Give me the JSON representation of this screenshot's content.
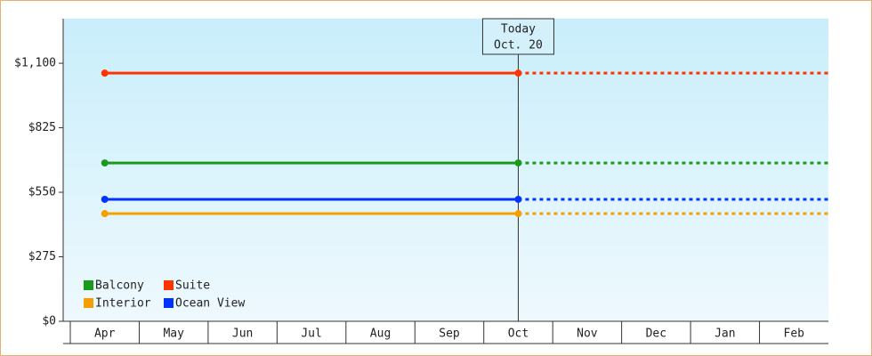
{
  "chart_data": {
    "type": "line",
    "categories": [
      "Apr",
      "May",
      "Jun",
      "Jul",
      "Aug",
      "Sep",
      "Oct",
      "Nov",
      "Dec",
      "Jan",
      "Feb"
    ],
    "series": [
      {
        "name": "Balcony",
        "color": "#1a9a1a",
        "values": [
          675,
          675,
          675,
          675,
          675,
          675,
          675,
          null,
          null,
          null,
          null
        ]
      },
      {
        "name": "Suite",
        "color": "#ff3300",
        "values": [
          1058,
          1058,
          1058,
          1058,
          1058,
          1058,
          1058,
          null,
          null,
          null,
          null
        ]
      },
      {
        "name": "Interior",
        "color": "#f5a000",
        "values": [
          459,
          459,
          459,
          459,
          459,
          459,
          459,
          null,
          null,
          null,
          null
        ]
      },
      {
        "name": "Ocean View",
        "color": "#0033ff",
        "values": [
          520,
          520,
          520,
          520,
          520,
          520,
          520,
          null,
          null,
          null,
          null
        ]
      }
    ],
    "ylim": [
      0,
      1290
    ],
    "yticks": [
      {
        "value": 0,
        "label": "$0"
      },
      {
        "value": 275,
        "label": "$275"
      },
      {
        "value": 550,
        "label": "$550"
      },
      {
        "value": 825,
        "label": "$825"
      },
      {
        "value": 1100,
        "label": "$1,100"
      }
    ],
    "annotation": {
      "lines": [
        "Today",
        "Oct. 20"
      ]
    },
    "legend": "bottom-left"
  }
}
